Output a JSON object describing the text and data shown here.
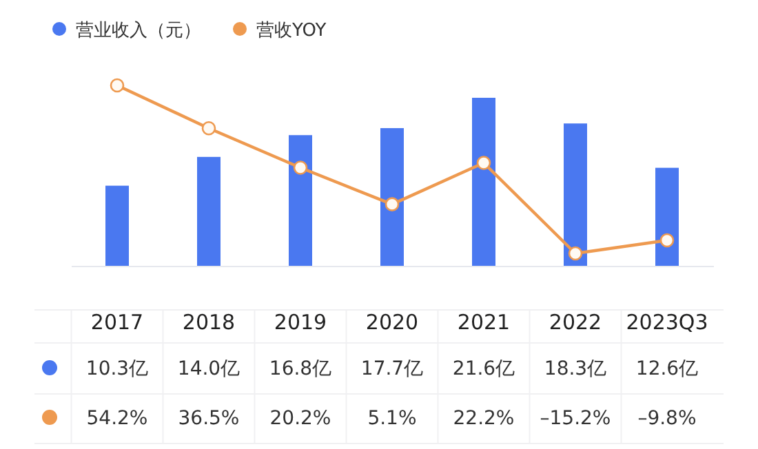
{
  "chart_data": {
    "type": "bar",
    "categories": [
      "2017",
      "2018",
      "2019",
      "2020",
      "2021",
      "2022",
      "2023Q3"
    ],
    "legend": "top left",
    "marker": "circle",
    "data_labels": true,
    "series": [
      {
        "name": "营业收入（元）",
        "color": "#4a78f0",
        "values": [
          10.3,
          14.0,
          16.8,
          17.7,
          21.6,
          18.3,
          12.6
        ],
        "value_labels": [
          "10.3亿",
          "14.0亿",
          "16.8亿",
          "17.7亿",
          "21.6亿",
          "18.3亿",
          "12.6亿"
        ]
      },
      {
        "name": "营收YOY",
        "type": "line",
        "axis": "y2",
        "color": "#ee9a50",
        "values": [
          54.2,
          36.5,
          20.2,
          5.1,
          22.2,
          -15.2,
          -9.8
        ],
        "value_labels": [
          "54.2%",
          "36.5%",
          "20.2%",
          "5.1%",
          "22.2%",
          "–15.2%",
          "–9.8%"
        ]
      }
    ]
  }
}
